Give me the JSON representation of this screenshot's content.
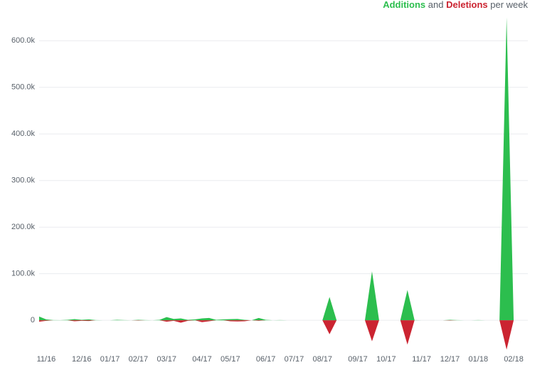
{
  "chart_data": {
    "type": "area",
    "legend_joiner": "and",
    "legend_suffix": "per week",
    "categories": [
      null,
      "11/16",
      null,
      null,
      null,
      null,
      "12/16",
      null,
      null,
      null,
      "01/17",
      null,
      null,
      null,
      "02/17",
      null,
      null,
      null,
      "03/17",
      null,
      null,
      null,
      null,
      "04/17",
      null,
      null,
      null,
      "05/17",
      null,
      null,
      null,
      null,
      "06/17",
      null,
      null,
      null,
      "07/17",
      null,
      null,
      null,
      "08/17",
      null,
      null,
      null,
      null,
      "09/17",
      null,
      null,
      null,
      "10/17",
      null,
      null,
      null,
      null,
      "11/17",
      null,
      null,
      null,
      "12/17",
      null,
      null,
      null,
      "01/18",
      null,
      null,
      null,
      null,
      "02/18",
      null,
      null
    ],
    "series": [
      {
        "name": "Additions",
        "color": "#2cbe4e",
        "values": [
          8000,
          2000,
          500,
          300,
          1000,
          2500,
          1000,
          2000,
          500,
          0,
          0,
          1000,
          500,
          0,
          1000,
          500,
          0,
          1000,
          7000,
          3000,
          4000,
          1000,
          2000,
          4000,
          5000,
          1000,
          2000,
          2500,
          3000,
          1000,
          0,
          5000,
          1000,
          0,
          500,
          0,
          0,
          0,
          0,
          0,
          0,
          50000,
          0,
          0,
          0,
          0,
          0,
          105000,
          0,
          0,
          0,
          0,
          65000,
          500,
          0,
          0,
          0,
          0,
          1000,
          500,
          0,
          0,
          500,
          0,
          0,
          0,
          650000,
          0,
          0,
          0
        ]
      },
      {
        "name": "Deletions",
        "color": "#cb2431",
        "values": [
          -3000,
          -1000,
          0,
          0,
          0,
          -2000,
          -1000,
          -1500,
          0,
          0,
          0,
          0,
          0,
          0,
          -500,
          0,
          0,
          0,
          -3000,
          -1000,
          -5000,
          -1000,
          0,
          -4000,
          -2000,
          0,
          0,
          -2000,
          -2500,
          -2000,
          0,
          -1000,
          0,
          0,
          0,
          0,
          0,
          0,
          0,
          0,
          0,
          -30000,
          0,
          0,
          0,
          0,
          0,
          -45000,
          0,
          0,
          0,
          0,
          -52000,
          0,
          0,
          0,
          0,
          0,
          -500,
          0,
          0,
          0,
          0,
          0,
          0,
          0,
          -63000,
          0,
          0,
          0
        ]
      }
    ],
    "ylim": [
      -70000,
      660000
    ],
    "yticks": [
      0,
      {
        "value": 100000,
        "label": "100.0k"
      },
      {
        "value": 200000,
        "label": "200.0k"
      },
      {
        "value": 300000,
        "label": "300.0k"
      },
      {
        "value": 400000,
        "label": "400.0k"
      },
      {
        "value": 500000,
        "label": "500.0k"
      },
      {
        "value": 600000,
        "label": "600.0k"
      }
    ],
    "grid": true
  }
}
